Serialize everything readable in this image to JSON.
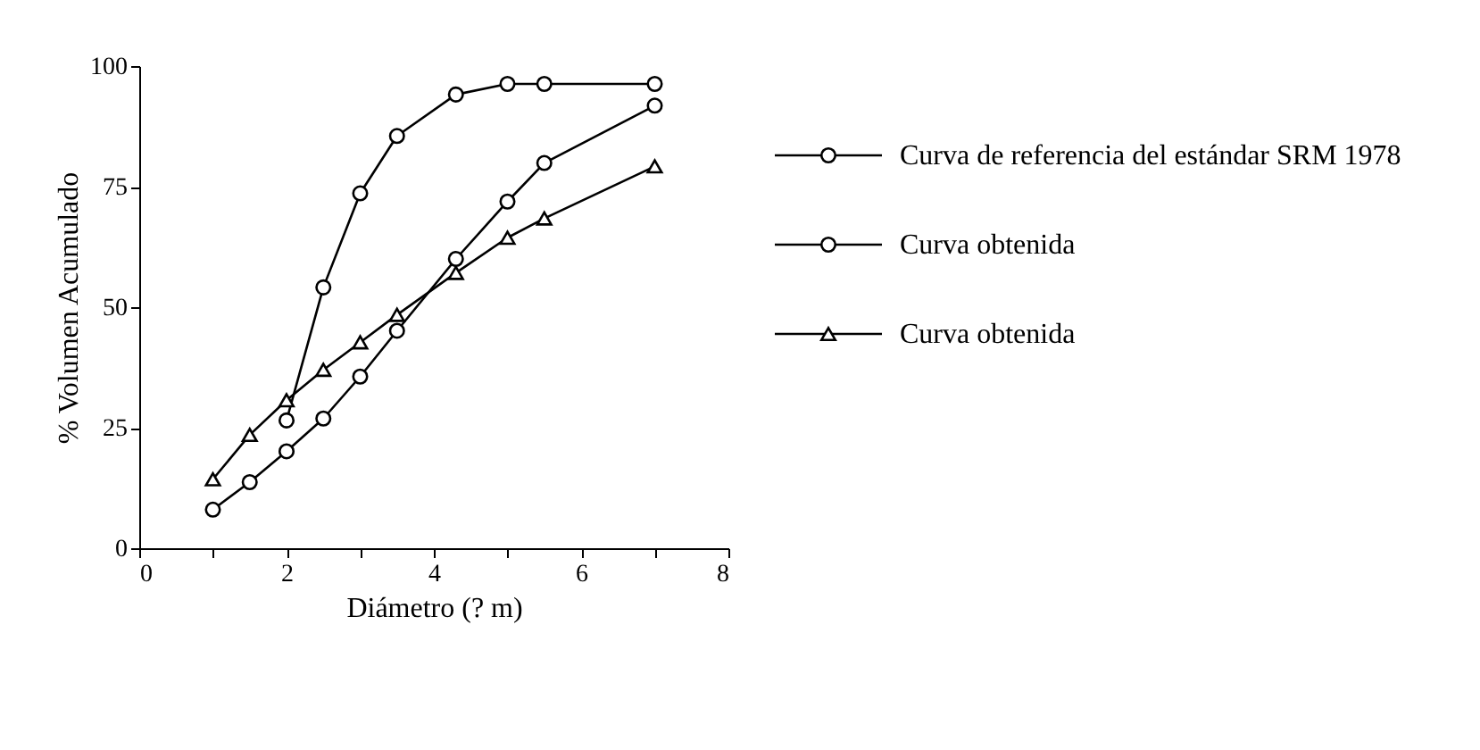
{
  "chart_data": {
    "type": "line",
    "xlabel": "Diámetro (? m)",
    "ylabel": "% Volumen Acumulado",
    "xlim": [
      0,
      8
    ],
    "ylim": [
      0,
      100
    ],
    "xticks": [
      0,
      {
        "value": 1,
        "label": null
      },
      2,
      {
        "value": 3,
        "label": null
      },
      4,
      {
        "value": 5,
        "label": null
      },
      6,
      {
        "value": 7,
        "label": null
      },
      8
    ],
    "yticks": [
      0,
      25,
      50,
      75,
      100
    ],
    "grid": false,
    "legend": "right",
    "series": [
      {
        "name": "Curva de referencia del estándar SRM 1978",
        "color": "#000000",
        "marker": "circle",
        "x": [
          1.0,
          1.5,
          2.0,
          2.5,
          3.0,
          3.5,
          4.3,
          5.0,
          5.5,
          7.0
        ],
        "values": [
          8,
          13.7,
          20.1,
          26.9,
          35.6,
          45.1,
          60,
          71.9,
          79.9,
          91.8
        ]
      },
      {
        "name": "Curva obtenida",
        "color": "#000000",
        "marker": "circle",
        "x": [
          2.0,
          2.5,
          3.0,
          3.5,
          4.3,
          5.0,
          5.5,
          7.0
        ],
        "values": [
          26.5,
          54.1,
          73.6,
          85.5,
          94.1,
          96.3,
          96.3,
          96.3
        ]
      },
      {
        "name": "Curva obtenida",
        "color": "#000000",
        "marker": "triangle",
        "x": [
          1.0,
          1.5,
          2.0,
          2.5,
          3.0,
          3.5,
          4.3,
          5.0,
          5.5,
          7.0
        ],
        "values": [
          14.3,
          23.5,
          30.7,
          37,
          42.7,
          48.4,
          57.1,
          64.4,
          68.4,
          79.2
        ]
      }
    ]
  }
}
